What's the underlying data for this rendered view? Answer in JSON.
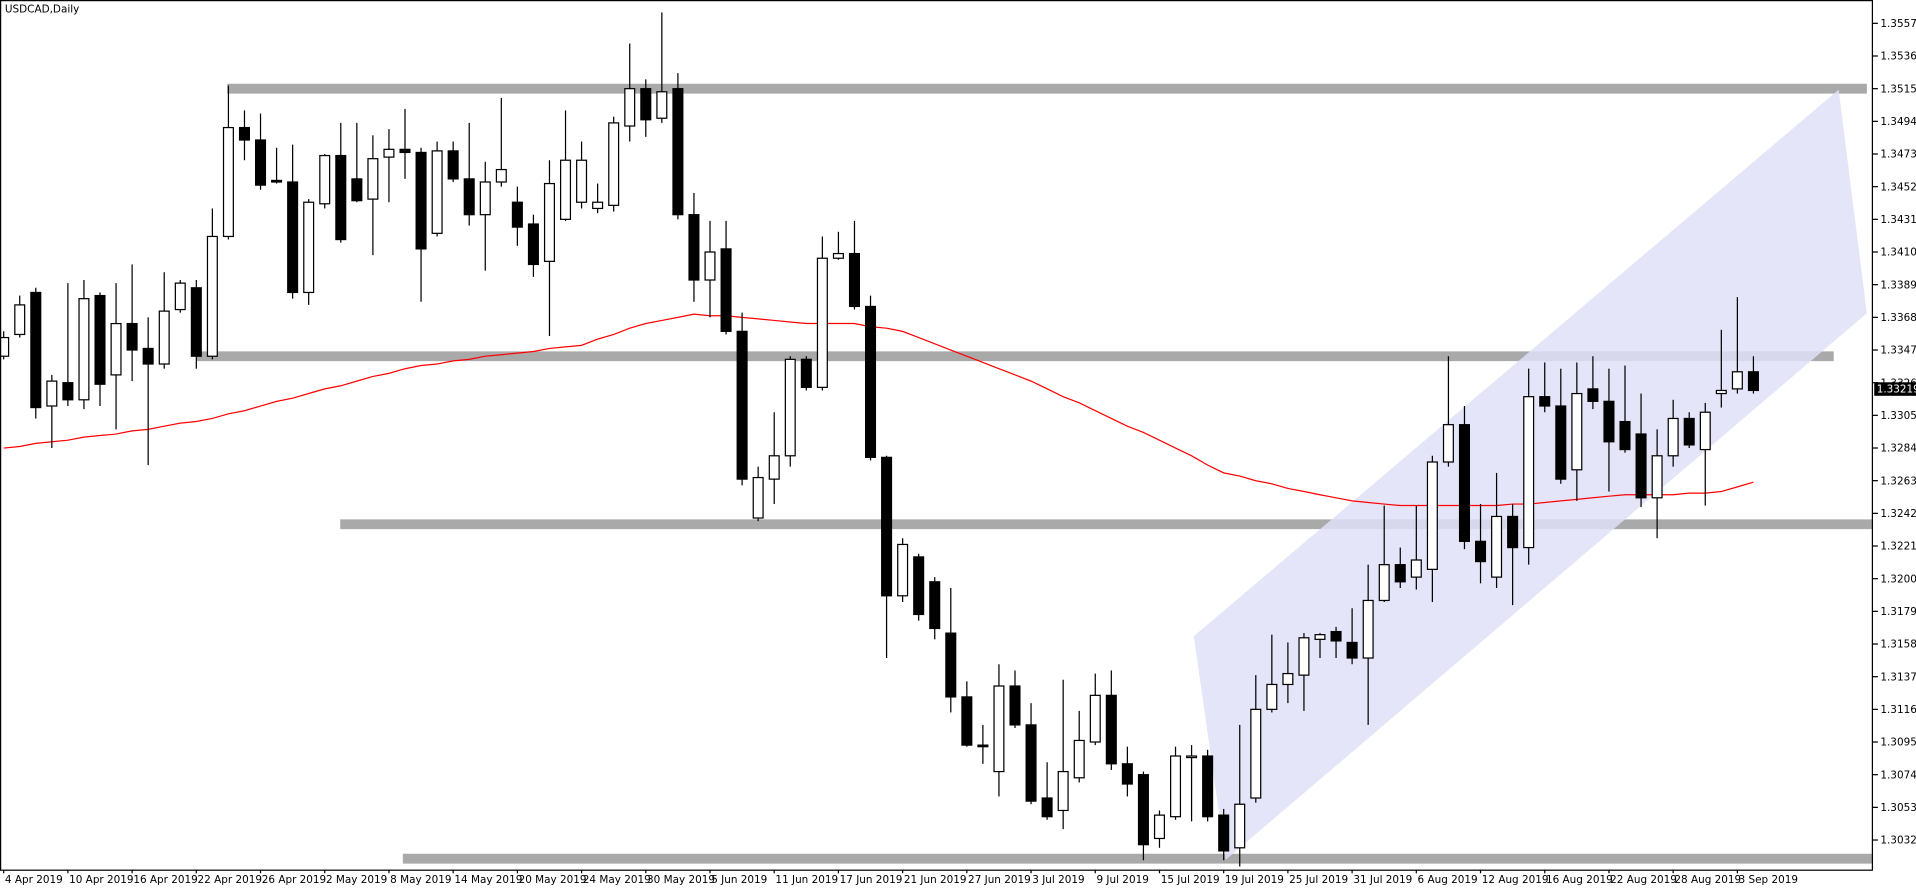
{
  "chart_data": {
    "type": "candlestick",
    "title": "USDCAD,Daily",
    "categories": [
      "4 Apr 2019",
      null,
      null,
      null,
      "10 Apr 2019",
      null,
      null,
      null,
      "16 Apr 2019",
      null,
      null,
      null,
      "22 Apr 2019",
      null,
      null,
      null,
      "26 Apr 2019",
      null,
      null,
      null,
      "2 May 2019",
      null,
      null,
      null,
      "8 May 2019",
      null,
      null,
      null,
      "14 May 2019",
      null,
      null,
      null,
      "20 May 2019",
      null,
      null,
      null,
      "24 May 2019",
      null,
      null,
      null,
      "30 May 2019",
      null,
      null,
      null,
      "5 Jun 2019",
      null,
      null,
      null,
      "11 Jun 2019",
      null,
      null,
      null,
      "17 Jun 2019",
      null,
      null,
      null,
      "21 Jun 2019",
      null,
      null,
      null,
      "27 Jun 2019",
      null,
      null,
      null,
      "3 Jul 2019",
      null,
      null,
      null,
      "9 Jul 2019",
      null,
      null,
      null,
      "15 Jul 2019",
      null,
      null,
      null,
      "19 Jul 2019",
      null,
      null,
      null,
      "25 Jul 2019",
      null,
      null,
      null,
      "31 Jul 2019",
      null,
      null,
      null,
      "6 Aug 2019",
      null,
      null,
      null,
      "12 Aug 2019",
      null,
      null,
      null,
      "16 Aug 2019",
      null,
      null,
      null,
      "22 Aug 2019",
      null,
      null,
      null,
      "28 Aug 2019",
      null,
      null,
      null,
      "3 Sep 2019",
      null
    ],
    "open": [
      1.3343,
      1.3357,
      1.3384,
      1.3311,
      1.3326,
      1.3315,
      1.3382,
      1.3331,
      1.3364,
      1.3348,
      1.3338,
      1.3373,
      1.3387,
      1.3343,
      1.342,
      1.349,
      1.3482,
      1.3456,
      1.3455,
      1.3384,
      1.3441,
      1.3472,
      1.3457,
      1.3444,
      1.3471,
      1.3476,
      1.3474,
      1.3422,
      1.3475,
      1.3457,
      1.3434,
      1.3455,
      1.3442,
      1.3428,
      1.3404,
      1.3431,
      1.3442,
      1.3438,
      1.344,
      1.3491,
      1.3515,
      1.3496,
      1.3515,
      1.3434,
      1.3392,
      1.3412,
      1.3359,
      1.3239,
      1.3264,
      1.3279,
      1.3341,
      1.3323,
      1.3406,
      1.3409,
      1.3375,
      1.3278,
      1.3189,
      1.3214,
      1.3198,
      1.3165,
      1.3124,
      1.3093,
      1.3076,
      1.3131,
      1.3106,
      1.3059,
      1.3051,
      1.3072,
      1.3095,
      1.3125,
      1.3081,
      1.3074,
      1.3033,
      1.3047,
      1.3085,
      1.3086,
      1.3048,
      1.3027,
      1.3059,
      1.3116,
      1.3132,
      1.3138,
      1.3161,
      1.3166,
      1.3159,
      1.3149,
      1.3186,
      1.3209,
      1.3201,
      1.3206,
      1.3275,
      1.3299,
      1.3224,
      1.3201,
      1.324,
      1.322,
      1.3317,
      1.3311,
      1.327,
      1.3322,
      1.3314,
      1.3301,
      1.3293,
      1.3252,
      1.3279,
      1.3303,
      1.3283,
      1.3319,
      1.3322,
      1.3333
    ],
    "high": [
      1.3359,
      1.3382,
      1.3387,
      1.3331,
      1.339,
      1.3392,
      1.3384,
      1.339,
      1.3402,
      1.3368,
      1.3397,
      1.3392,
      1.3392,
      1.3438,
      1.3517,
      1.3501,
      1.3499,
      1.3477,
      1.3479,
      1.3444,
      1.3473,
      1.3493,
      1.3493,
      1.3485,
      1.3489,
      1.3502,
      1.3477,
      1.3481,
      1.3481,
      1.3493,
      1.3468,
      1.3509,
      1.3452,
      1.3434,
      1.3469,
      1.3501,
      1.3481,
      1.3454,
      1.3497,
      1.3544,
      1.3521,
      1.3564,
      1.3525,
      1.3448,
      1.343,
      1.343,
      1.3371,
      1.3272,
      1.3307,
      1.3343,
      1.3343,
      1.342,
      1.3423,
      1.343,
      1.3382,
      1.3279,
      1.3226,
      1.3216,
      1.3201,
      1.3194,
      1.3134,
      1.3106,
      1.3145,
      1.3141,
      1.312,
      1.3082,
      1.3135,
      1.3115,
      1.3139,
      1.3141,
      1.3092,
      1.3076,
      1.3051,
      1.3092,
      1.3093,
      1.309,
      1.3052,
      1.3106,
      1.3138,
      1.3164,
      1.3159,
      1.3165,
      1.3165,
      1.3169,
      1.3181,
      1.3209,
      1.3247,
      1.322,
      1.3247,
      1.3279,
      1.3343,
      1.3311,
      1.3248,
      1.3268,
      1.3248,
      1.3335,
      1.3339,
      1.3335,
      1.3339,
      1.3343,
      1.3335,
      1.3337,
      1.3319,
      1.3296,
      1.3315,
      1.3307,
      1.3313,
      1.336,
      1.3381,
      1.3343
    ],
    "low": [
      1.3341,
      1.3355,
      1.3303,
      1.3284,
      1.3311,
      1.3309,
      1.3311,
      1.3296,
      1.3327,
      1.3273,
      1.3335,
      1.3371,
      1.3335,
      1.3341,
      1.3418,
      1.3469,
      1.345,
      1.3454,
      1.338,
      1.3376,
      1.3438,
      1.3416,
      1.3442,
      1.3408,
      1.3442,
      1.3457,
      1.3378,
      1.342,
      1.3455,
      1.3427,
      1.3398,
      1.3452,
      1.3414,
      1.3394,
      1.3356,
      1.343,
      1.3438,
      1.3435,
      1.3436,
      1.3481,
      1.3484,
      1.3493,
      1.3431,
      1.3378,
      1.3368,
      1.3357,
      1.326,
      1.3237,
      1.3248,
      1.3272,
      1.3321,
      1.3321,
      1.3405,
      1.3373,
      1.3276,
      1.3149,
      1.3185,
      1.3173,
      1.3161,
      1.3114,
      1.3092,
      1.3081,
      1.306,
      1.3104,
      1.3055,
      1.3045,
      1.3039,
      1.3069,
      1.3093,
      1.3077,
      1.306,
      1.3019,
      1.3027,
      1.3045,
      1.3044,
      1.3044,
      1.3019,
      1.3015,
      1.3056,
      1.3114,
      1.312,
      1.3115,
      1.3149,
      1.3149,
      1.3145,
      1.3106,
      1.3185,
      1.3194,
      1.3193,
      1.3185,
      1.3272,
      1.3219,
      1.3197,
      1.3194,
      1.3183,
      1.3209,
      1.3307,
      1.3261,
      1.325,
      1.3309,
      1.3256,
      1.3281,
      1.3246,
      1.3226,
      1.3272,
      1.3284,
      1.3247,
      1.331,
      1.3319,
      1.3319
    ],
    "close": [
      1.3355,
      1.3376,
      1.331,
      1.3327,
      1.3315,
      1.338,
      1.3325,
      1.3364,
      1.3347,
      1.3338,
      1.3372,
      1.339,
      1.3343,
      1.342,
      1.349,
      1.3482,
      1.3453,
      1.3455,
      1.3384,
      1.3442,
      1.3472,
      1.3418,
      1.3443,
      1.347,
      1.3476,
      1.3474,
      1.3412,
      1.3475,
      1.3457,
      1.3434,
      1.3455,
      1.3463,
      1.3426,
      1.3402,
      1.3454,
      1.3469,
      1.3469,
      1.3442,
      1.3493,
      1.3515,
      1.3495,
      1.3513,
      1.3434,
      1.3392,
      1.341,
      1.3359,
      1.3264,
      1.3265,
      1.3279,
      1.3341,
      1.3323,
      1.3406,
      1.3409,
      1.3375,
      1.3278,
      1.3189,
      1.3222,
      1.3177,
      1.3168,
      1.3124,
      1.3093,
      1.3092,
      1.3131,
      1.3106,
      1.3057,
      1.3047,
      1.3076,
      1.3096,
      1.3125,
      1.3081,
      1.3068,
      1.3029,
      1.3048,
      1.3086,
      1.3086,
      1.3047,
      1.3025,
      1.3055,
      1.3116,
      1.3132,
      1.3139,
      1.3162,
      1.3164,
      1.316,
      1.3149,
      1.3186,
      1.3209,
      1.3198,
      1.3212,
      1.3275,
      1.3299,
      1.3224,
      1.3211,
      1.324,
      1.322,
      1.3317,
      1.3311,
      1.3264,
      1.3319,
      1.3314,
      1.3288,
      1.3283,
      1.3252,
      1.3279,
      1.3303,
      1.3286,
      1.3307,
      1.3321,
      1.3333,
      1.3321
    ],
    "up_color": "#ffffff",
    "down_color": "#000000",
    "moving_average": {
      "color": "#ff0000",
      "values": [
        1.3284,
        1.3285,
        1.3287,
        1.3288,
        1.3289,
        1.3291,
        1.3292,
        1.3293,
        1.3295,
        1.3296,
        1.3298,
        1.33,
        1.3301,
        1.3303,
        1.3306,
        1.3308,
        1.3311,
        1.3314,
        1.3316,
        1.3319,
        1.3322,
        1.3324,
        1.3327,
        1.333,
        1.3332,
        1.3335,
        1.3337,
        1.3338,
        1.334,
        1.3341,
        1.3343,
        1.3344,
        1.3345,
        1.3346,
        1.3348,
        1.3349,
        1.335,
        1.3354,
        1.3357,
        1.3361,
        1.3364,
        1.3366,
        1.3368,
        1.337,
        1.3369,
        1.3369,
        1.3368,
        1.3367,
        1.3366,
        1.3365,
        1.3364,
        1.3364,
        1.3364,
        1.3364,
        1.3362,
        1.3361,
        1.3359,
        1.3355,
        1.3351,
        1.3347,
        1.3343,
        1.3339,
        1.3335,
        1.3331,
        1.3327,
        1.3322,
        1.3317,
        1.3313,
        1.3308,
        1.3303,
        1.3298,
        1.3294,
        1.3289,
        1.3284,
        1.3279,
        1.3273,
        1.3268,
        1.3266,
        1.3263,
        1.3261,
        1.3258,
        1.3256,
        1.3254,
        1.3252,
        1.325,
        1.3249,
        1.3248,
        1.3247,
        1.3247,
        1.3247,
        1.3247,
        1.3247,
        1.3247,
        1.3247,
        1.3248,
        1.3248,
        1.3249,
        1.325,
        1.3251,
        1.3252,
        1.3253,
        1.3254,
        1.3254,
        1.3254,
        1.3254,
        1.3255,
        1.3255,
        1.3256,
        1.3259,
        1.3262
      ]
    },
    "levels": {
      "color": "#a9a9a9",
      "values": [
        1.3515,
        1.3343,
        1.3235,
        1.302
      ]
    },
    "current_price": 1.33219,
    "ylim": [
      1.3013,
      1.3572
    ],
    "yticks": [
      {
        "value": 1.3557,
        "label": "1.35570"
      },
      {
        "value": 1.3536,
        "label": "1.35360"
      },
      {
        "value": 1.3515,
        "label": "1.35150"
      },
      {
        "value": 1.3494,
        "label": "1.34940"
      },
      {
        "value": 1.3473,
        "label": "1.34730"
      },
      {
        "value": 1.3452,
        "label": "1.34520"
      },
      {
        "value": 1.3431,
        "label": "1.34310"
      },
      {
        "value": 1.341,
        "label": "1.34100"
      },
      {
        "value": 1.3389,
        "label": "1.33890"
      },
      {
        "value": 1.3368,
        "label": "1.33680"
      },
      {
        "value": 1.3347,
        "label": "1.33470"
      },
      {
        "value": 1.3326,
        "label": "1.33260"
      },
      {
        "value": 1.3305,
        "label": "1.33050"
      },
      {
        "value": 1.3284,
        "label": "1.32840"
      },
      {
        "value": 1.3263,
        "label": "1.32630"
      },
      {
        "value": 1.3242,
        "label": "1.32420"
      },
      {
        "value": 1.3221,
        "label": "1.32210"
      },
      {
        "value": 1.32,
        "label": "1.32000"
      },
      {
        "value": 1.3179,
        "label": "1.31790"
      },
      {
        "value": 1.3158,
        "label": "1.31580"
      },
      {
        "value": 1.3137,
        "label": "1.31370"
      },
      {
        "value": 1.3116,
        "label": "1.31160"
      },
      {
        "value": 1.3095,
        "label": "1.30950"
      },
      {
        "value": 1.3074,
        "label": "1.30740"
      },
      {
        "value": 1.3053,
        "label": "1.30530"
      },
      {
        "value": 1.3032,
        "label": "1.30320"
      }
    ]
  }
}
